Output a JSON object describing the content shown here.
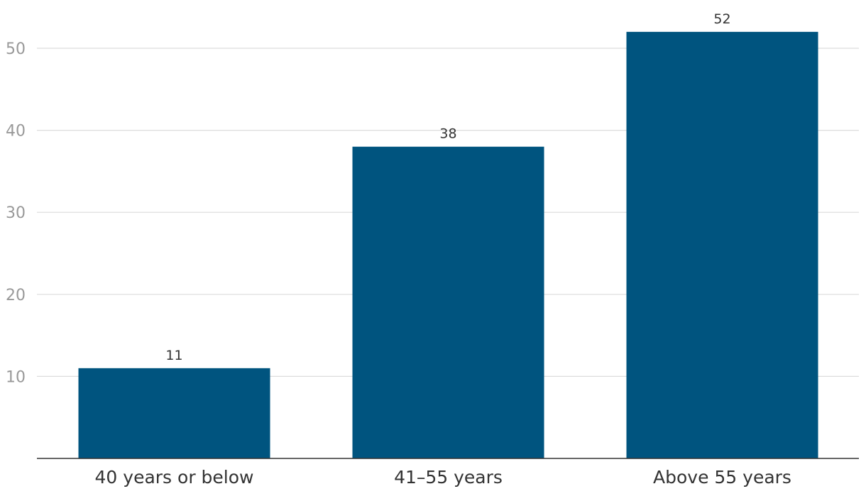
{
  "chart_data": {
    "type": "bar",
    "title": "",
    "xlabel": "",
    "ylabel": "",
    "categories": [
      "40 years or below",
      "41–55 years",
      "Above 55 years"
    ],
    "values": [
      11,
      38,
      52
    ],
    "data_labels": [
      "11",
      "38",
      "52"
    ],
    "yticks": [
      10,
      20,
      30,
      40,
      50
    ],
    "ytick_labels": [
      "10",
      "20",
      "30",
      "40",
      "50"
    ],
    "ylim": [
      0,
      54
    ],
    "grid": true,
    "legend": "none",
    "colors": {
      "bar": "#00547f",
      "grid": "#dcdcdc",
      "axis": "#333333",
      "ytick_text": "#999999",
      "label_text": "#333333"
    }
  }
}
